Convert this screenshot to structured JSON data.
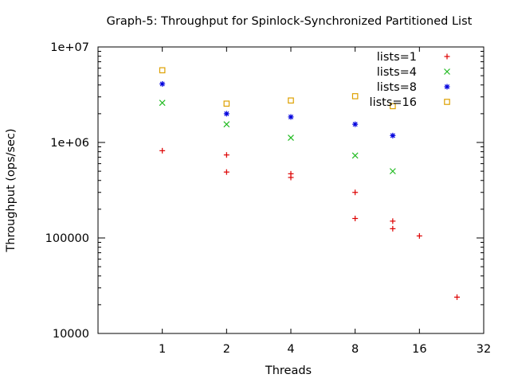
{
  "chart_data": {
    "type": "scatter",
    "title": "Graph-5: Throughput for Spinlock-Synchronized Partitioned List",
    "xlabel": "Threads",
    "ylabel": "Throughput (ops/sec)",
    "x_scale": "log2",
    "y_scale": "log10",
    "xlim": [
      0.5,
      32
    ],
    "ylim": [
      10000,
      10000000
    ],
    "x_ticks": [
      1,
      2,
      4,
      8,
      16,
      32
    ],
    "x_tick_labels": [
      "1",
      "2",
      "4",
      "8",
      "16",
      "32"
    ],
    "y_ticks": [
      10000,
      100000,
      1000000,
      10000000
    ],
    "y_tick_labels": [
      "10000",
      "100000",
      "1e+06",
      "1e+07"
    ],
    "grid": false,
    "legend_position": "top-right",
    "series": [
      {
        "name": "lists=1",
        "color": "#dd0000",
        "marker": "plus",
        "points": [
          [
            1,
            820000
          ],
          [
            2,
            740000
          ],
          [
            2,
            490000
          ],
          [
            4,
            470000
          ],
          [
            4,
            430000
          ],
          [
            8,
            300000
          ],
          [
            8,
            160000
          ],
          [
            12,
            150000
          ],
          [
            12,
            125000
          ],
          [
            16,
            105000
          ],
          [
            24,
            24000
          ]
        ]
      },
      {
        "name": "lists=4",
        "color": "#22bb22",
        "marker": "cross",
        "points": [
          [
            1,
            2600000
          ],
          [
            2,
            1550000
          ],
          [
            4,
            1120000
          ],
          [
            8,
            730000
          ],
          [
            12,
            500000
          ]
        ]
      },
      {
        "name": "lists=8",
        "color": "#0000dd",
        "marker": "star",
        "points": [
          [
            1,
            4100000
          ],
          [
            2,
            2000000
          ],
          [
            4,
            1850000
          ],
          [
            8,
            1550000
          ],
          [
            12,
            1180000
          ]
        ]
      },
      {
        "name": "lists=16",
        "color": "#dda000",
        "marker": "square",
        "points": [
          [
            1,
            5700000
          ],
          [
            2,
            2550000
          ],
          [
            4,
            2750000
          ],
          [
            8,
            3050000
          ],
          [
            12,
            2400000
          ]
        ]
      }
    ]
  }
}
